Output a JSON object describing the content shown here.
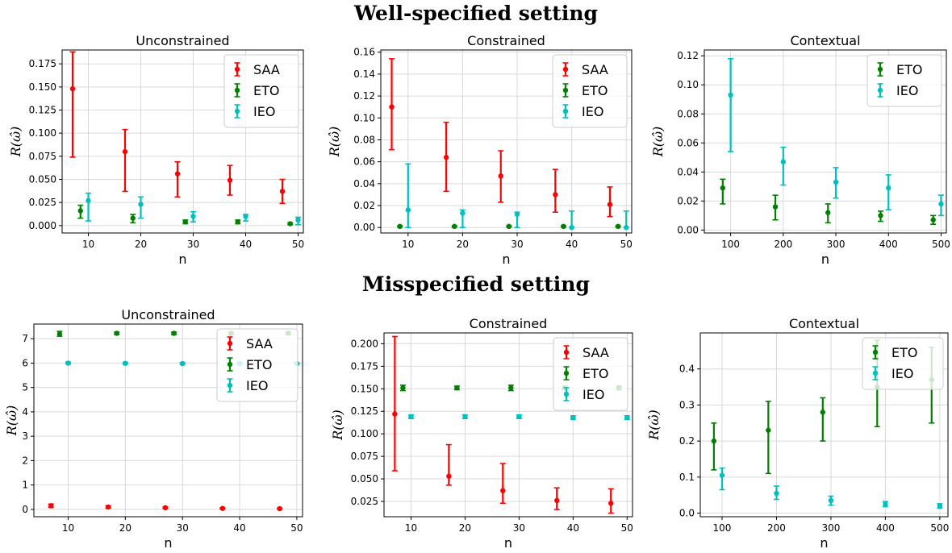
{
  "section_titles": {
    "top": "Well-specified setting",
    "bottom": "Misspecified setting"
  },
  "colors": {
    "SAA": "#ff0000",
    "ETO": "#008000",
    "IEO": "#00bfbf"
  },
  "chart_data": [
    {
      "type": "errorbar",
      "title": "Unconstrained",
      "xlabel": "n",
      "ylabel": "R(ω̂)",
      "xlim": [
        5,
        51
      ],
      "ylim": [
        -0.008,
        0.19
      ],
      "xticks": [
        10,
        20,
        30,
        40,
        50
      ],
      "yticks": [
        0,
        0.025,
        0.05,
        0.075,
        0.1,
        0.125,
        0.15,
        0.175
      ],
      "ytick_labels": [
        "0.000",
        "0.025",
        "0.050",
        "0.075",
        "0.100",
        "0.125",
        "0.150",
        "0.175"
      ],
      "grid": true,
      "legend": "top-right",
      "series": [
        {
          "name": "SAA",
          "x": [
            7,
            17,
            27,
            37,
            47
          ],
          "y": [
            0.148,
            0.08,
            0.056,
            0.049,
            0.037
          ],
          "ylo": [
            0.074,
            0.037,
            0.031,
            0.033,
            0.024
          ],
          "yhi": [
            0.188,
            0.104,
            0.069,
            0.065,
            0.05
          ]
        },
        {
          "name": "ETO",
          "x": [
            8.5,
            18.5,
            28.5,
            38.5,
            48.5
          ],
          "y": [
            0.016,
            0.008,
            0.004,
            0.004,
            0.002
          ],
          "ylo": [
            0.008,
            0.003,
            0.002,
            0.002,
            0.001
          ],
          "yhi": [
            0.022,
            0.012,
            0.006,
            0.006,
            0.003
          ]
        },
        {
          "name": "IEO",
          "x": [
            10,
            20,
            30,
            40,
            50
          ],
          "y": [
            0.027,
            0.023,
            0.01,
            0.01,
            0.006
          ],
          "ylo": [
            0.005,
            0.008,
            0.004,
            0.005,
            0.001
          ],
          "yhi": [
            0.035,
            0.031,
            0.015,
            0.012,
            0.009
          ]
        }
      ]
    },
    {
      "type": "errorbar",
      "title": "Constrained",
      "xlabel": "n",
      "ylabel": "R(ω̂)",
      "xlim": [
        5,
        51
      ],
      "ylim": [
        -0.005,
        0.162
      ],
      "xticks": [
        10,
        20,
        30,
        40,
        50
      ],
      "yticks": [
        0,
        0.02,
        0.04,
        0.06,
        0.08,
        0.1,
        0.12,
        0.14,
        0.16
      ],
      "ytick_labels": [
        "0.00",
        "0.02",
        "0.04",
        "0.06",
        "0.08",
        "0.10",
        "0.12",
        "0.14",
        "0.16"
      ],
      "grid": true,
      "legend": "top-right",
      "series": [
        {
          "name": "SAA",
          "x": [
            7,
            17,
            27,
            37,
            47
          ],
          "y": [
            0.11,
            0.064,
            0.047,
            0.03,
            0.021
          ],
          "ylo": [
            0.071,
            0.033,
            0.023,
            0.014,
            0.01
          ],
          "yhi": [
            0.154,
            0.096,
            0.07,
            0.053,
            0.037
          ]
        },
        {
          "name": "ETO",
          "x": [
            8.5,
            18.5,
            28.5,
            38.5,
            48.5
          ],
          "y": [
            0.001,
            0.001,
            0.001,
            0.001,
            0.001
          ],
          "ylo": [
            0.0005,
            0.0005,
            0.0005,
            0.0005,
            0.0005
          ],
          "yhi": [
            0.0015,
            0.0015,
            0.0015,
            0.0015,
            0.0015
          ]
        },
        {
          "name": "IEO",
          "x": [
            10,
            20,
            30,
            40,
            50
          ],
          "y": [
            0.016,
            0.013,
            0.012,
            0.0,
            0.0
          ],
          "ylo": [
            0.0,
            0.0,
            0.0,
            0.0,
            0.0
          ],
          "yhi": [
            0.058,
            0.016,
            0.014,
            0.015,
            0.015
          ]
        }
      ]
    },
    {
      "type": "errorbar",
      "title": "Contextual",
      "xlabel": "n",
      "ylabel": "R(ω̂)",
      "xlim": [
        50,
        510
      ],
      "ylim": [
        -0.002,
        0.124
      ],
      "xticks": [
        100,
        200,
        300,
        400,
        500
      ],
      "yticks": [
        0,
        0.02,
        0.04,
        0.06,
        0.08,
        0.1,
        0.12
      ],
      "ytick_labels": [
        "0.00",
        "0.02",
        "0.04",
        "0.06",
        "0.08",
        "0.10",
        "0.12"
      ],
      "grid": true,
      "legend": "top-right",
      "series": [
        {
          "name": "ETO",
          "x": [
            85,
            185,
            285,
            385,
            485
          ],
          "y": [
            0.029,
            0.016,
            0.012,
            0.01,
            0.007
          ],
          "ylo": [
            0.018,
            0.007,
            0.005,
            0.006,
            0.004
          ],
          "yhi": [
            0.035,
            0.024,
            0.018,
            0.013,
            0.01
          ]
        },
        {
          "name": "IEO",
          "x": [
            100,
            200,
            300,
            400,
            500
          ],
          "y": [
            0.093,
            0.047,
            0.033,
            0.029,
            0.018
          ],
          "ylo": [
            0.054,
            0.031,
            0.022,
            0.014,
            0.01
          ],
          "yhi": [
            0.118,
            0.057,
            0.043,
            0.038,
            0.024
          ]
        }
      ]
    },
    {
      "type": "errorbar",
      "title": "Unconstrained",
      "xlabel": "n",
      "ylabel": "R(ω̂)",
      "xlim": [
        4,
        51
      ],
      "ylim": [
        -0.3,
        7.6
      ],
      "xticks": [
        10,
        20,
        30,
        40,
        50
      ],
      "yticks": [
        0,
        1,
        2,
        3,
        4,
        5,
        6,
        7
      ],
      "ytick_labels": [
        "0",
        "1",
        "2",
        "3",
        "4",
        "5",
        "6",
        "7"
      ],
      "grid": true,
      "legend": "top-right",
      "series": [
        {
          "name": "SAA",
          "x": [
            7,
            17,
            27,
            37,
            47
          ],
          "y": [
            0.15,
            0.1,
            0.07,
            0.04,
            0.03
          ],
          "ylo": [
            0.08,
            0.05,
            0.04,
            0.02,
            0.01
          ],
          "yhi": [
            0.22,
            0.15,
            0.1,
            0.07,
            0.05
          ]
        },
        {
          "name": "ETO",
          "x": [
            8.5,
            18.5,
            28.5,
            38.5,
            48.5
          ],
          "y": [
            7.2,
            7.22,
            7.22,
            7.22,
            7.22
          ],
          "ylo": [
            7.1,
            7.17,
            7.17,
            7.17,
            7.17
          ],
          "yhi": [
            7.3,
            7.27,
            7.27,
            7.27,
            7.27
          ]
        },
        {
          "name": "IEO",
          "x": [
            10,
            20,
            30,
            40,
            50
          ],
          "y": [
            6.0,
            5.99,
            5.98,
            5.98,
            5.98
          ],
          "ylo": [
            5.96,
            5.95,
            5.94,
            5.94,
            5.94
          ],
          "yhi": [
            6.04,
            6.03,
            6.02,
            6.02,
            6.02
          ]
        }
      ]
    },
    {
      "type": "errorbar",
      "title": "Constrained",
      "xlabel": "n",
      "ylabel": "R(ω̂)",
      "xlim": [
        5,
        51
      ],
      "ylim": [
        0.008,
        0.212
      ],
      "xticks": [
        10,
        20,
        30,
        40,
        50
      ],
      "yticks": [
        0.025,
        0.05,
        0.075,
        0.1,
        0.125,
        0.15,
        0.175,
        0.2
      ],
      "ytick_labels": [
        "0.025",
        "0.050",
        "0.075",
        "0.100",
        "0.125",
        "0.150",
        "0.175",
        "0.200"
      ],
      "grid": true,
      "legend": "top-right",
      "series": [
        {
          "name": "SAA",
          "x": [
            7,
            17,
            27,
            37,
            47
          ],
          "y": [
            0.122,
            0.053,
            0.037,
            0.026,
            0.023
          ],
          "ylo": [
            0.059,
            0.043,
            0.023,
            0.016,
            0.012
          ],
          "yhi": [
            0.208,
            0.088,
            0.067,
            0.04,
            0.039
          ]
        },
        {
          "name": "ETO",
          "x": [
            8.5,
            18.5,
            28.5,
            38.5,
            48.5
          ],
          "y": [
            0.151,
            0.151,
            0.151,
            0.151,
            0.151
          ],
          "ylo": [
            0.148,
            0.149,
            0.148,
            0.149,
            0.149
          ],
          "yhi": [
            0.154,
            0.153,
            0.154,
            0.153,
            0.153
          ]
        },
        {
          "name": "IEO",
          "x": [
            10,
            20,
            30,
            40,
            50
          ],
          "y": [
            0.119,
            0.119,
            0.119,
            0.118,
            0.118
          ],
          "ylo": [
            0.117,
            0.117,
            0.117,
            0.116,
            0.116
          ],
          "yhi": [
            0.121,
            0.121,
            0.121,
            0.12,
            0.12
          ]
        }
      ]
    },
    {
      "type": "errorbar",
      "title": "Contextual",
      "xlabel": "n",
      "ylabel": "R(ω̂)",
      "xlim": [
        60,
        515
      ],
      "ylim": [
        -0.01,
        0.5
      ],
      "xticks": [
        100,
        200,
        300,
        400,
        500
      ],
      "yticks": [
        0,
        0.1,
        0.2,
        0.3,
        0.4
      ],
      "ytick_labels": [
        "0.0",
        "0.1",
        "0.2",
        "0.3",
        "0.4"
      ],
      "grid": true,
      "legend": "top-right",
      "series": [
        {
          "name": "ETO",
          "x": [
            85,
            185,
            285,
            385,
            485
          ],
          "y": [
            0.2,
            0.23,
            0.28,
            0.35,
            0.37
          ],
          "ylo": [
            0.12,
            0.11,
            0.2,
            0.24,
            0.25
          ],
          "yhi": [
            0.25,
            0.31,
            0.32,
            0.48,
            0.46
          ]
        },
        {
          "name": "IEO",
          "x": [
            100,
            200,
            300,
            400,
            500
          ],
          "y": [
            0.105,
            0.055,
            0.035,
            0.025,
            0.02
          ],
          "ylo": [
            0.065,
            0.038,
            0.022,
            0.018,
            0.014
          ],
          "yhi": [
            0.125,
            0.075,
            0.047,
            0.032,
            0.026
          ]
        }
      ]
    }
  ]
}
